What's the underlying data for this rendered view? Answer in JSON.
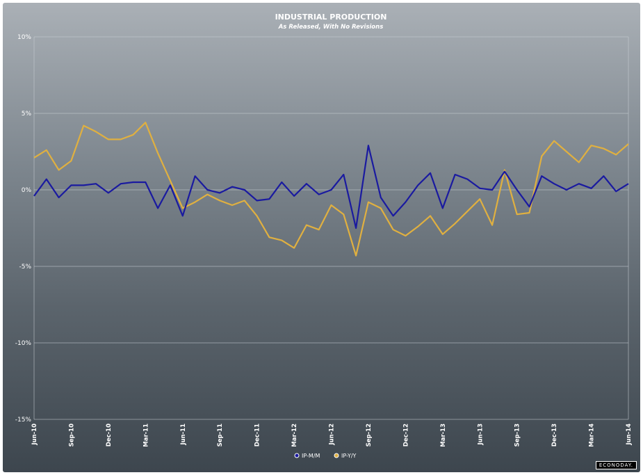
{
  "chart_data": {
    "type": "line",
    "title": "INDUSTRIAL PRODUCTION",
    "subtitle": "As Released, With No Revisions",
    "ylim": [
      -15,
      10
    ],
    "yticks": [
      10,
      5,
      0,
      -5,
      -10,
      -15
    ],
    "ytick_labels": [
      "10%",
      "5%",
      "0%",
      "-5%",
      "-10%",
      "-15%"
    ],
    "x": [
      "Jun-10",
      "Jul-10",
      "Aug-10",
      "Sep-10",
      "Oct-10",
      "Nov-10",
      "Dec-10",
      "Jan-11",
      "Feb-11",
      "Mar-11",
      "Apr-11",
      "May-11",
      "Jun-11",
      "Jul-11",
      "Aug-11",
      "Sep-11",
      "Oct-11",
      "Nov-11",
      "Dec-11",
      "Jan-12",
      "Feb-12",
      "Mar-12",
      "Apr-12",
      "May-12",
      "Jun-12",
      "Jul-12",
      "Aug-12",
      "Sep-12",
      "Oct-12",
      "Nov-12",
      "Dec-12",
      "Jan-13",
      "Feb-13",
      "Mar-13",
      "Apr-13",
      "May-13",
      "Jun-13",
      "Jul-13",
      "Aug-13",
      "Sep-13",
      "Oct-13",
      "Nov-13",
      "Dec-13",
      "Jan-14",
      "Feb-14",
      "Mar-14",
      "Apr-14",
      "May-14",
      "Jun-14"
    ],
    "xtick_labels": [
      "Jun-10",
      "Sep-10",
      "Dec-10",
      "Mar-11",
      "Jun-11",
      "Sep-11",
      "Dec-11",
      "Mar-12",
      "Jun-12",
      "Sep-12",
      "Dec-12",
      "Mar-13",
      "Jun-13",
      "Sep-13",
      "Dec-13",
      "Mar-14",
      "Jun-14"
    ],
    "series": [
      {
        "name": "IP-M/M",
        "color": "#1a1aa0",
        "values": [
          -0.4,
          0.7,
          -0.5,
          0.3,
          0.3,
          0.4,
          -0.2,
          0.4,
          0.5,
          0.5,
          -1.2,
          0.3,
          -1.7,
          0.9,
          0.0,
          -0.2,
          0.2,
          0.0,
          -0.7,
          -0.6,
          0.5,
          -0.4,
          0.4,
          -0.3,
          0.0,
          1.0,
          -2.5,
          2.9,
          -0.5,
          -1.7,
          -0.8,
          0.3,
          1.1,
          -1.2,
          1.0,
          0.7,
          0.1,
          0.0,
          1.2,
          0.0,
          -1.1,
          0.9,
          0.4,
          0.0,
          0.4,
          0.1,
          0.9,
          -0.1,
          0.4
        ]
      },
      {
        "name": "IP-Y/Y",
        "color": "#e0b040",
        "values": [
          2.1,
          2.6,
          1.3,
          1.9,
          4.2,
          3.8,
          3.3,
          3.3,
          3.6,
          4.4,
          2.4,
          0.6,
          -1.2,
          -0.8,
          -0.3,
          -0.7,
          -1.0,
          -0.7,
          -1.7,
          -3.1,
          -3.3,
          -3.8,
          -2.3,
          -2.6,
          -1.0,
          -1.6,
          -4.3,
          -0.8,
          -1.2,
          -2.6,
          -3.0,
          -2.4,
          -1.7,
          -2.9,
          -2.2,
          -1.4,
          -0.6,
          -2.3,
          1.3,
          -1.6,
          -1.5,
          2.2,
          3.2,
          2.5,
          1.8,
          2.9,
          2.7,
          2.3,
          3.0
        ]
      }
    ],
    "grid": true,
    "legend_position": "bottom-center",
    "background_gradient": [
      "#aab0b6",
      "#3d464e"
    ]
  },
  "brand": "ECONODAY."
}
